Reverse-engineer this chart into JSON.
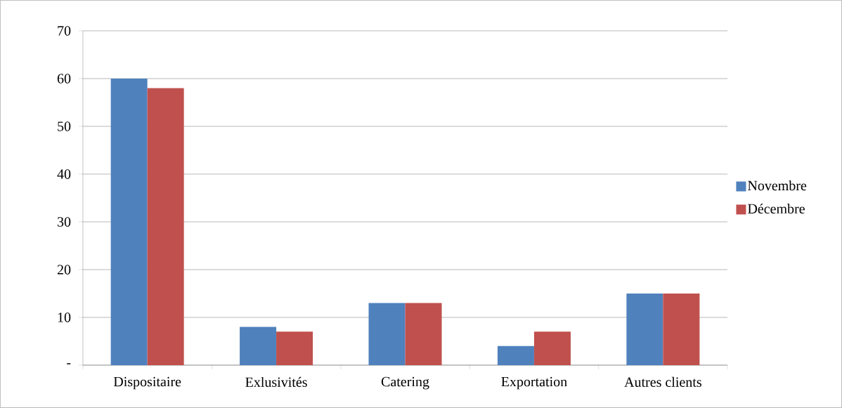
{
  "chart_data": {
    "type": "bar",
    "categories": [
      "Dispositaire",
      "Exlusivités",
      "Catering",
      "Exportation",
      "Autres clients"
    ],
    "series": [
      {
        "name": "Novembre",
        "color": "#4f81bd",
        "values": [
          60,
          8,
          13,
          4,
          15
        ]
      },
      {
        "name": "Décembre",
        "color": "#c0504d",
        "values": [
          58,
          7,
          13,
          7,
          15
        ]
      }
    ],
    "ylim": [
      0,
      70
    ],
    "yticks": [
      {
        "value": 0,
        "label": "-"
      },
      10,
      20,
      30,
      40,
      50,
      60,
      70
    ],
    "grid": "y",
    "legend": "right"
  }
}
